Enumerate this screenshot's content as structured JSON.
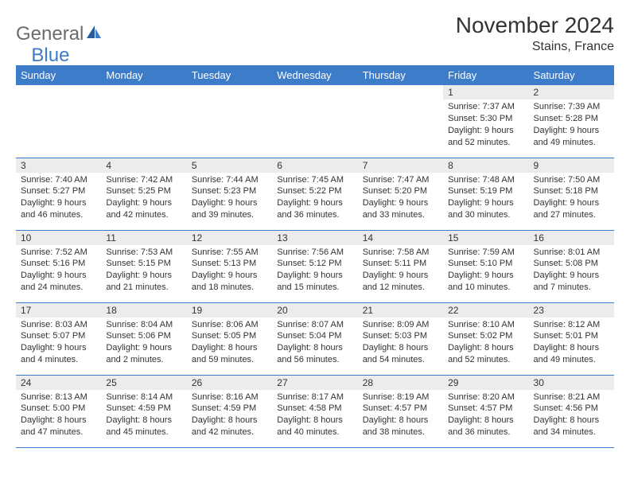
{
  "logo": {
    "word1": "General",
    "word2": "Blue"
  },
  "title": "November 2024",
  "location": "Stains, France",
  "colors": {
    "header_bg": "#3d7cc9",
    "header_text": "#ffffff",
    "daynum_bg": "#ececec",
    "row_border": "#3d7cc9",
    "logo_gray": "#6b6b6b",
    "logo_blue": "#3d7cc9",
    "page_bg": "#ffffff"
  },
  "weekdays": [
    "Sunday",
    "Monday",
    "Tuesday",
    "Wednesday",
    "Thursday",
    "Friday",
    "Saturday"
  ],
  "weeks": [
    [
      {
        "day": "",
        "lines": []
      },
      {
        "day": "",
        "lines": []
      },
      {
        "day": "",
        "lines": []
      },
      {
        "day": "",
        "lines": []
      },
      {
        "day": "",
        "lines": []
      },
      {
        "day": "1",
        "lines": [
          "Sunrise: 7:37 AM",
          "Sunset: 5:30 PM",
          "Daylight: 9 hours",
          "and 52 minutes."
        ]
      },
      {
        "day": "2",
        "lines": [
          "Sunrise: 7:39 AM",
          "Sunset: 5:28 PM",
          "Daylight: 9 hours",
          "and 49 minutes."
        ]
      }
    ],
    [
      {
        "day": "3",
        "lines": [
          "Sunrise: 7:40 AM",
          "Sunset: 5:27 PM",
          "Daylight: 9 hours",
          "and 46 minutes."
        ]
      },
      {
        "day": "4",
        "lines": [
          "Sunrise: 7:42 AM",
          "Sunset: 5:25 PM",
          "Daylight: 9 hours",
          "and 42 minutes."
        ]
      },
      {
        "day": "5",
        "lines": [
          "Sunrise: 7:44 AM",
          "Sunset: 5:23 PM",
          "Daylight: 9 hours",
          "and 39 minutes."
        ]
      },
      {
        "day": "6",
        "lines": [
          "Sunrise: 7:45 AM",
          "Sunset: 5:22 PM",
          "Daylight: 9 hours",
          "and 36 minutes."
        ]
      },
      {
        "day": "7",
        "lines": [
          "Sunrise: 7:47 AM",
          "Sunset: 5:20 PM",
          "Daylight: 9 hours",
          "and 33 minutes."
        ]
      },
      {
        "day": "8",
        "lines": [
          "Sunrise: 7:48 AM",
          "Sunset: 5:19 PM",
          "Daylight: 9 hours",
          "and 30 minutes."
        ]
      },
      {
        "day": "9",
        "lines": [
          "Sunrise: 7:50 AM",
          "Sunset: 5:18 PM",
          "Daylight: 9 hours",
          "and 27 minutes."
        ]
      }
    ],
    [
      {
        "day": "10",
        "lines": [
          "Sunrise: 7:52 AM",
          "Sunset: 5:16 PM",
          "Daylight: 9 hours",
          "and 24 minutes."
        ]
      },
      {
        "day": "11",
        "lines": [
          "Sunrise: 7:53 AM",
          "Sunset: 5:15 PM",
          "Daylight: 9 hours",
          "and 21 minutes."
        ]
      },
      {
        "day": "12",
        "lines": [
          "Sunrise: 7:55 AM",
          "Sunset: 5:13 PM",
          "Daylight: 9 hours",
          "and 18 minutes."
        ]
      },
      {
        "day": "13",
        "lines": [
          "Sunrise: 7:56 AM",
          "Sunset: 5:12 PM",
          "Daylight: 9 hours",
          "and 15 minutes."
        ]
      },
      {
        "day": "14",
        "lines": [
          "Sunrise: 7:58 AM",
          "Sunset: 5:11 PM",
          "Daylight: 9 hours",
          "and 12 minutes."
        ]
      },
      {
        "day": "15",
        "lines": [
          "Sunrise: 7:59 AM",
          "Sunset: 5:10 PM",
          "Daylight: 9 hours",
          "and 10 minutes."
        ]
      },
      {
        "day": "16",
        "lines": [
          "Sunrise: 8:01 AM",
          "Sunset: 5:08 PM",
          "Daylight: 9 hours",
          "and 7 minutes."
        ]
      }
    ],
    [
      {
        "day": "17",
        "lines": [
          "Sunrise: 8:03 AM",
          "Sunset: 5:07 PM",
          "Daylight: 9 hours",
          "and 4 minutes."
        ]
      },
      {
        "day": "18",
        "lines": [
          "Sunrise: 8:04 AM",
          "Sunset: 5:06 PM",
          "Daylight: 9 hours",
          "and 2 minutes."
        ]
      },
      {
        "day": "19",
        "lines": [
          "Sunrise: 8:06 AM",
          "Sunset: 5:05 PM",
          "Daylight: 8 hours",
          "and 59 minutes."
        ]
      },
      {
        "day": "20",
        "lines": [
          "Sunrise: 8:07 AM",
          "Sunset: 5:04 PM",
          "Daylight: 8 hours",
          "and 56 minutes."
        ]
      },
      {
        "day": "21",
        "lines": [
          "Sunrise: 8:09 AM",
          "Sunset: 5:03 PM",
          "Daylight: 8 hours",
          "and 54 minutes."
        ]
      },
      {
        "day": "22",
        "lines": [
          "Sunrise: 8:10 AM",
          "Sunset: 5:02 PM",
          "Daylight: 8 hours",
          "and 52 minutes."
        ]
      },
      {
        "day": "23",
        "lines": [
          "Sunrise: 8:12 AM",
          "Sunset: 5:01 PM",
          "Daylight: 8 hours",
          "and 49 minutes."
        ]
      }
    ],
    [
      {
        "day": "24",
        "lines": [
          "Sunrise: 8:13 AM",
          "Sunset: 5:00 PM",
          "Daylight: 8 hours",
          "and 47 minutes."
        ]
      },
      {
        "day": "25",
        "lines": [
          "Sunrise: 8:14 AM",
          "Sunset: 4:59 PM",
          "Daylight: 8 hours",
          "and 45 minutes."
        ]
      },
      {
        "day": "26",
        "lines": [
          "Sunrise: 8:16 AM",
          "Sunset: 4:59 PM",
          "Daylight: 8 hours",
          "and 42 minutes."
        ]
      },
      {
        "day": "27",
        "lines": [
          "Sunrise: 8:17 AM",
          "Sunset: 4:58 PM",
          "Daylight: 8 hours",
          "and 40 minutes."
        ]
      },
      {
        "day": "28",
        "lines": [
          "Sunrise: 8:19 AM",
          "Sunset: 4:57 PM",
          "Daylight: 8 hours",
          "and 38 minutes."
        ]
      },
      {
        "day": "29",
        "lines": [
          "Sunrise: 8:20 AM",
          "Sunset: 4:57 PM",
          "Daylight: 8 hours",
          "and 36 minutes."
        ]
      },
      {
        "day": "30",
        "lines": [
          "Sunrise: 8:21 AM",
          "Sunset: 4:56 PM",
          "Daylight: 8 hours",
          "and 34 minutes."
        ]
      }
    ]
  ]
}
